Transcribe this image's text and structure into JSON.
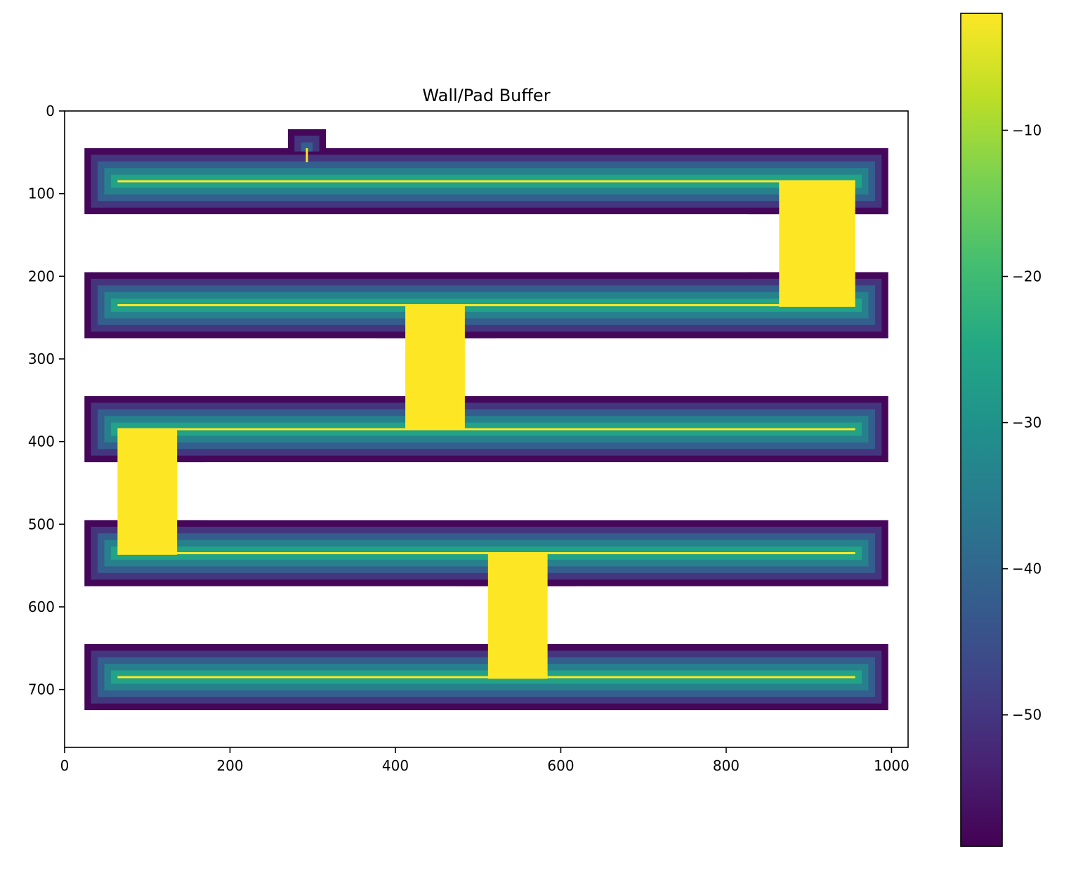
{
  "chart_data": {
    "type": "heatmap",
    "title": "Wall/Pad Buffer",
    "xlabel": "",
    "ylabel": "",
    "xlim": [
      0,
      1020
    ],
    "ylim": [
      770,
      0
    ],
    "y_inverted": true,
    "xticks": [
      0,
      200,
      400,
      600,
      800,
      1000
    ],
    "yticks": [
      0,
      100,
      200,
      300,
      400,
      500,
      600,
      700
    ],
    "xtick_labels": [
      "0",
      "200",
      "400",
      "600",
      "800",
      "1000"
    ],
    "ytick_labels": [
      "0",
      "100",
      "200",
      "300",
      "400",
      "500",
      "600",
      "700"
    ],
    "grid": false,
    "colormap": "viridis",
    "colorbar": {
      "range": [
        -59,
        -2
      ],
      "ticks": [
        -10,
        -20,
        -30,
        -40,
        -50
      ],
      "tick_labels": [
        "−10",
        "−20",
        "−30",
        "−40",
        "−50"
      ]
    },
    "buffer_band_width": 8,
    "buffer_levels": [
      -58,
      -50,
      -42,
      -34,
      -26,
      -18,
      -10,
      -3
    ],
    "background": "unset",
    "corridors": [
      {
        "x": [
          24,
          996
        ],
        "y": [
          45,
          125
        ]
      },
      {
        "x": [
          24,
          996
        ],
        "y": [
          195,
          275
        ]
      },
      {
        "x": [
          24,
          996
        ],
        "y": [
          345,
          425
        ]
      },
      {
        "x": [
          24,
          996
        ],
        "y": [
          495,
          575
        ]
      },
      {
        "x": [
          24,
          996
        ],
        "y": [
          645,
          725
        ]
      },
      {
        "x": [
          270,
          316
        ],
        "y": [
          22,
          45
        ]
      }
    ],
    "walls": [
      {
        "x": [
          24,
          826
        ],
        "y": [
          125,
          195
        ]
      },
      {
        "x": [
          24,
          376
        ],
        "y": [
          275,
          345
        ]
      },
      {
        "x": [
          522,
          996
        ],
        "y": [
          275,
          345
        ]
      },
      {
        "x": [
          172,
          996
        ],
        "y": [
          425,
          495
        ]
      },
      {
        "x": [
          24,
          474
        ],
        "y": [
          575,
          645
        ]
      },
      {
        "x": [
          620,
          996
        ],
        "y": [
          575,
          645
        ]
      }
    ],
    "plateaus": [
      {
        "x": [
          864,
          956
        ],
        "y": [
          85,
          237
        ]
      },
      {
        "x": [
          412,
          484
        ],
        "y": [
          235,
          385
        ]
      },
      {
        "x": [
          64,
          136
        ],
        "y": [
          385,
          537
        ]
      },
      {
        "x": [
          512,
          584
        ],
        "y": [
          535,
          687
        ]
      }
    ],
    "ridges": [
      {
        "x": [
          64,
          956
        ],
        "y": [
          85,
          85
        ]
      },
      {
        "x": [
          64,
          956
        ],
        "y": [
          235,
          235
        ]
      },
      {
        "x": [
          64,
          956
        ],
        "y": [
          385,
          385
        ]
      },
      {
        "x": [
          64,
          956
        ],
        "y": [
          535,
          535
        ]
      },
      {
        "x": [
          64,
          956
        ],
        "y": [
          685,
          685
        ]
      },
      {
        "x": [
          293,
          293
        ],
        "y": [
          45,
          62
        ]
      }
    ]
  }
}
